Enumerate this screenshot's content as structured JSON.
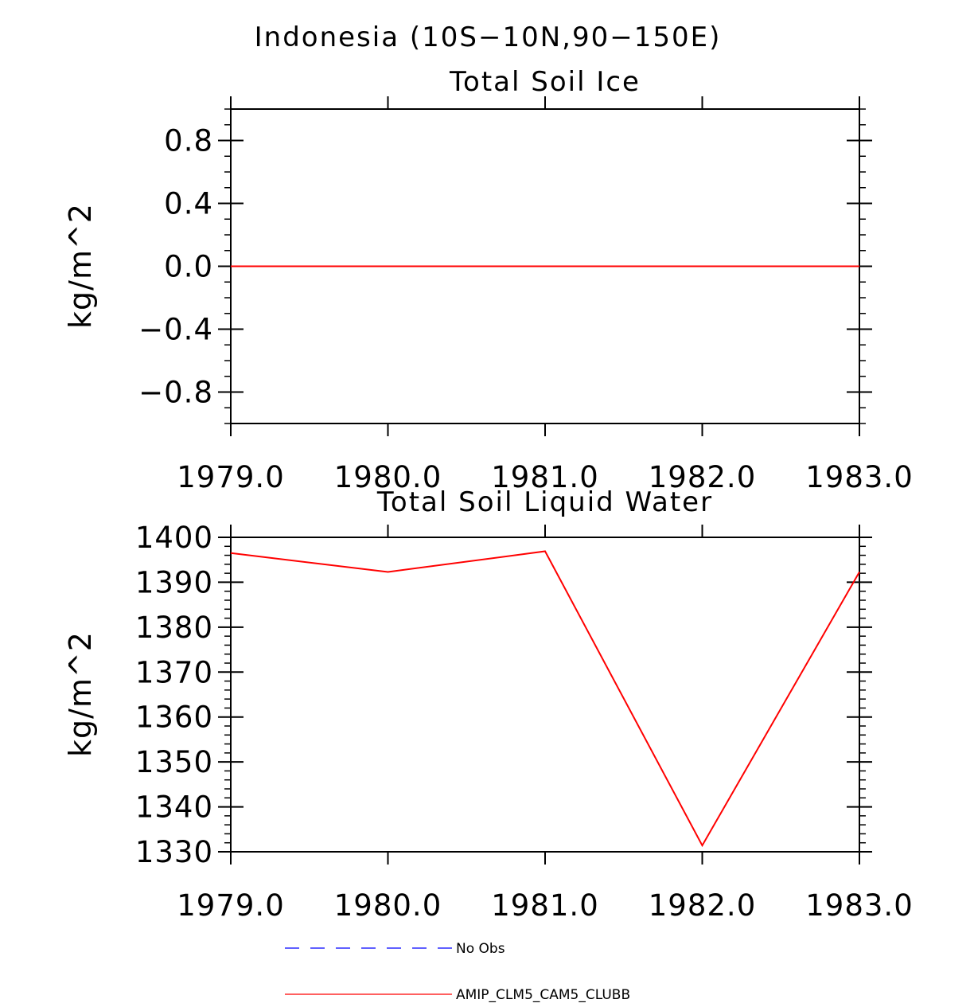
{
  "figure": {
    "title": "Indonesia (10S−10N,90−150E)"
  },
  "legend": {
    "entries": [
      {
        "label": "No Obs",
        "color": "#0000ff",
        "dashed": true
      },
      {
        "label": "AMIP_CLM5_CAM5_CLUBB",
        "color": "#ff0000",
        "dashed": false
      }
    ]
  },
  "chart_data": [
    {
      "type": "line",
      "title": "Total Soil Ice",
      "xlabel": "",
      "ylabel": "kg/m^2",
      "xlim": [
        1979,
        1983
      ],
      "ylim": [
        -1,
        1
      ],
      "xticks": [
        1979.0,
        1980.0,
        1981.0,
        1982.0,
        1983.0
      ],
      "xtick_labels": [
        "1979.0",
        "1980.0",
        "1981.0",
        "1982.0",
        "1983.0"
      ],
      "yticks": [
        -0.8,
        -0.4,
        0.0,
        0.4,
        0.8
      ],
      "ytick_labels": [
        "−0.8",
        "−0.4",
        "0.0",
        "0.4",
        "0.8"
      ],
      "yminor_step": 0.1,
      "grid": false,
      "series": [
        {
          "name": "AMIP_CLM5_CAM5_CLUBB",
          "color": "#ff0000",
          "x": [
            1979,
            1980,
            1981,
            1982,
            1983
          ],
          "y": [
            0,
            0,
            0,
            0,
            0
          ]
        }
      ]
    },
    {
      "type": "line",
      "title": "Total Soil Liquid Water",
      "xlabel": "",
      "ylabel": "kg/m^2",
      "xlim": [
        1979,
        1983
      ],
      "ylim": [
        1330,
        1400
      ],
      "xticks": [
        1979.0,
        1980.0,
        1981.0,
        1982.0,
        1983.0
      ],
      "xtick_labels": [
        "1979.0",
        "1980.0",
        "1981.0",
        "1982.0",
        "1983.0"
      ],
      "yticks": [
        1330,
        1340,
        1350,
        1360,
        1370,
        1380,
        1390,
        1400
      ],
      "ytick_labels": [
        "1330",
        "1340",
        "1350",
        "1360",
        "1370",
        "1380",
        "1390",
        "1400"
      ],
      "yminor_step": 2,
      "grid": false,
      "series": [
        {
          "name": "AMIP_CLM5_CAM5_CLUBB",
          "color": "#ff0000",
          "x": [
            1979,
            1980,
            1981,
            1982,
            1983
          ],
          "y": [
            1396.5,
            1392.3,
            1396.9,
            1331.4,
            1392.3
          ]
        }
      ]
    }
  ]
}
